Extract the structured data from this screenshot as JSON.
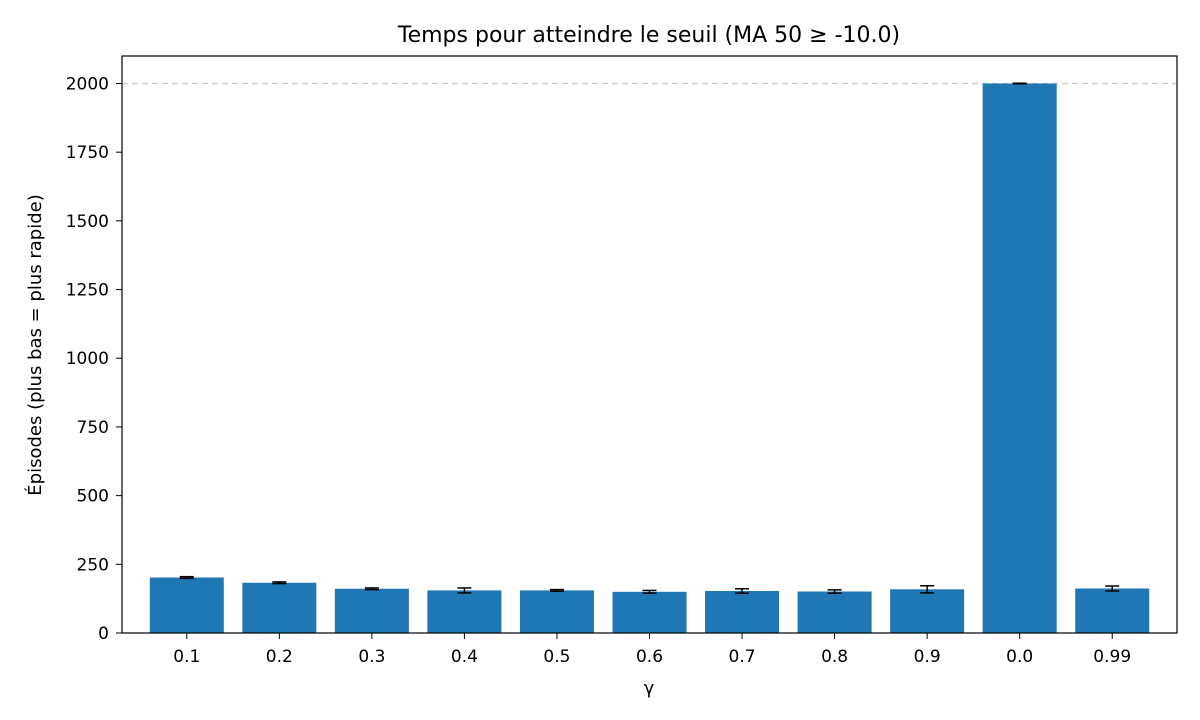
{
  "chart_data": {
    "type": "bar",
    "title": "Temps pour atteindre le seuil (MA 50 ≥ -10.0)",
    "xlabel": "γ",
    "ylabel": "Épisodes (plus bas = plus rapide)",
    "categories": [
      "0.1",
      "0.2",
      "0.3",
      "0.4",
      "0.5",
      "0.6",
      "0.7",
      "0.8",
      "0.9",
      "0.0",
      "0.99"
    ],
    "values": [
      202,
      183,
      161,
      155,
      155,
      150,
      153,
      151,
      159,
      2000,
      162
    ],
    "errors": [
      3,
      3,
      3,
      9,
      3,
      5,
      8,
      6,
      13,
      1,
      9
    ],
    "ylim": [
      0,
      2100
    ],
    "yticks": [
      0,
      250,
      500,
      750,
      1000,
      1250,
      1500,
      1750,
      2000
    ],
    "reference_line": 2000,
    "bar_color": "#1f77b4",
    "grid": false
  }
}
